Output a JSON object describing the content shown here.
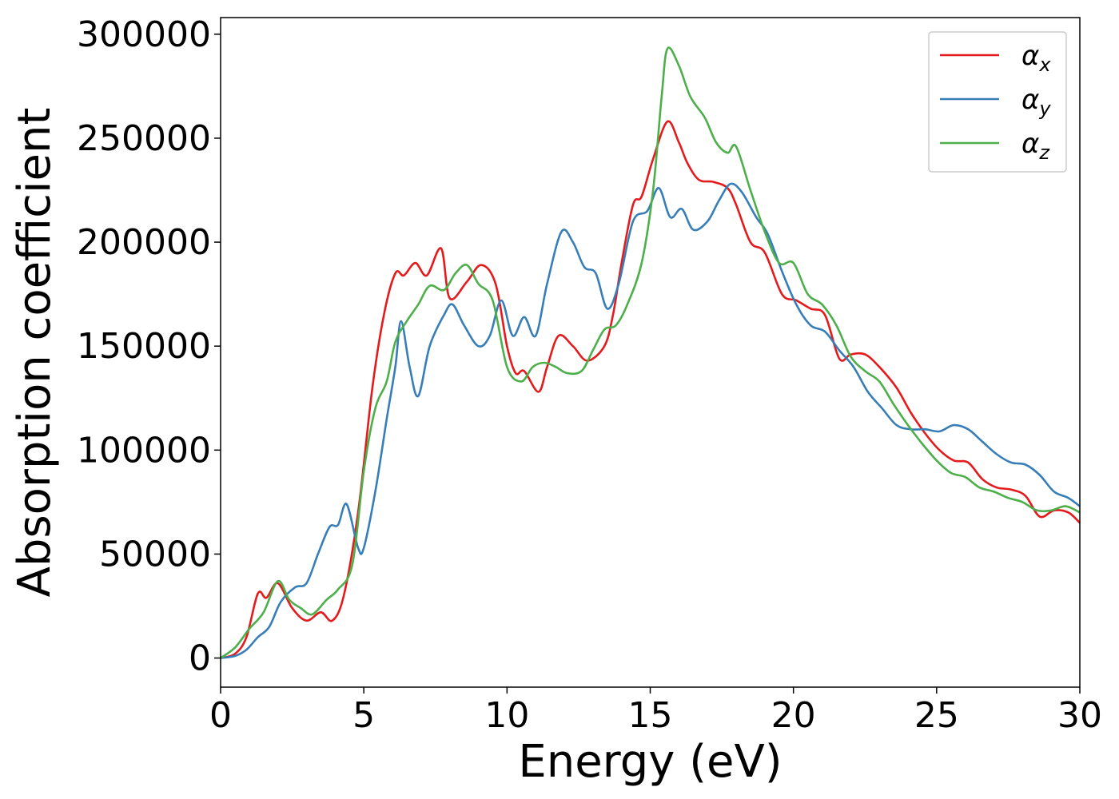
{
  "chart_data": {
    "type": "line",
    "xlabel": "Energy (eV)",
    "ylabel": "Absorption coefficient",
    "xlim": [
      0,
      30
    ],
    "ylim": [
      -14000,
      308000
    ],
    "xticks": [
      0,
      5,
      10,
      15,
      20,
      25,
      30
    ],
    "xtick_labels": [
      "0",
      "5",
      "10",
      "15",
      "20",
      "25",
      "30"
    ],
    "yticks": [
      0,
      50000,
      100000,
      150000,
      200000,
      250000,
      300000
    ],
    "ytick_labels": [
      "0",
      "50000",
      "100000",
      "150000",
      "200000",
      "250000",
      "300000"
    ],
    "grid": false,
    "legend_position": "top-right",
    "series": [
      {
        "name": "α_x",
        "symbol": "α",
        "subscript": "x",
        "color": "#e41a1c",
        "points": [
          [
            0,
            0
          ],
          [
            0.5,
            2000
          ],
          [
            0.9,
            10000
          ],
          [
            1.3,
            31000
          ],
          [
            1.6,
            29000
          ],
          [
            2.0,
            36000
          ],
          [
            2.5,
            24000
          ],
          [
            3.0,
            18000
          ],
          [
            3.5,
            22000
          ],
          [
            3.9,
            18000
          ],
          [
            4.3,
            30000
          ],
          [
            4.8,
            70000
          ],
          [
            5.3,
            130000
          ],
          [
            5.7,
            165000
          ],
          [
            6.1,
            185000
          ],
          [
            6.4,
            184000
          ],
          [
            6.8,
            190000
          ],
          [
            7.2,
            184000
          ],
          [
            7.7,
            197000
          ],
          [
            8.0,
            173000
          ],
          [
            8.6,
            181000
          ],
          [
            9.1,
            189000
          ],
          [
            9.6,
            180000
          ],
          [
            10.0,
            150000
          ],
          [
            10.3,
            137000
          ],
          [
            10.6,
            138000
          ],
          [
            11.1,
            128000
          ],
          [
            11.4,
            140000
          ],
          [
            11.8,
            155000
          ],
          [
            12.3,
            150000
          ],
          [
            12.8,
            143000
          ],
          [
            13.4,
            150000
          ],
          [
            13.7,
            165000
          ],
          [
            14.0,
            190000
          ],
          [
            14.4,
            218000
          ],
          [
            14.7,
            222000
          ],
          [
            15.1,
            240000
          ],
          [
            15.6,
            258000
          ],
          [
            16.0,
            248000
          ],
          [
            16.3,
            238000
          ],
          [
            16.7,
            230000
          ],
          [
            17.2,
            229000
          ],
          [
            17.7,
            226000
          ],
          [
            18.0,
            218000
          ],
          [
            18.5,
            200000
          ],
          [
            19.0,
            195000
          ],
          [
            19.6,
            175000
          ],
          [
            20.1,
            172000
          ],
          [
            20.6,
            168000
          ],
          [
            21.1,
            165000
          ],
          [
            21.6,
            144000
          ],
          [
            22.0,
            146000
          ],
          [
            22.5,
            146000
          ],
          [
            23.0,
            140000
          ],
          [
            23.6,
            130000
          ],
          [
            24.1,
            118000
          ],
          [
            24.6,
            108000
          ],
          [
            25.1,
            100000
          ],
          [
            25.6,
            95000
          ],
          [
            26.1,
            94000
          ],
          [
            26.6,
            86000
          ],
          [
            27.1,
            82000
          ],
          [
            27.6,
            81000
          ],
          [
            28.1,
            78000
          ],
          [
            28.6,
            68000
          ],
          [
            29.1,
            71000
          ],
          [
            29.6,
            70000
          ],
          [
            30.0,
            65000
          ]
        ]
      },
      {
        "name": "α_y",
        "symbol": "α",
        "subscript": "y",
        "color": "#377eb8",
        "points": [
          [
            0,
            0
          ],
          [
            0.5,
            1000
          ],
          [
            0.9,
            4000
          ],
          [
            1.3,
            10000
          ],
          [
            1.7,
            15000
          ],
          [
            2.1,
            27000
          ],
          [
            2.6,
            34000
          ],
          [
            3.0,
            36000
          ],
          [
            3.4,
            50000
          ],
          [
            3.8,
            63000
          ],
          [
            4.1,
            64000
          ],
          [
            4.4,
            74000
          ],
          [
            4.8,
            53000
          ],
          [
            5.0,
            53000
          ],
          [
            5.4,
            80000
          ],
          [
            5.8,
            115000
          ],
          [
            6.1,
            140000
          ],
          [
            6.3,
            162000
          ],
          [
            6.6,
            140000
          ],
          [
            6.9,
            126000
          ],
          [
            7.3,
            150000
          ],
          [
            7.8,
            165000
          ],
          [
            8.1,
            170000
          ],
          [
            8.5,
            160000
          ],
          [
            9.0,
            150000
          ],
          [
            9.4,
            155000
          ],
          [
            9.8,
            172000
          ],
          [
            10.2,
            155000
          ],
          [
            10.6,
            164000
          ],
          [
            11.0,
            155000
          ],
          [
            11.4,
            180000
          ],
          [
            11.9,
            205000
          ],
          [
            12.3,
            200000
          ],
          [
            12.7,
            188000
          ],
          [
            13.1,
            185000
          ],
          [
            13.5,
            168000
          ],
          [
            13.9,
            180000
          ],
          [
            14.4,
            210000
          ],
          [
            14.9,
            215000
          ],
          [
            15.3,
            226000
          ],
          [
            15.7,
            212000
          ],
          [
            16.1,
            216000
          ],
          [
            16.5,
            206000
          ],
          [
            17.0,
            210000
          ],
          [
            17.4,
            220000
          ],
          [
            17.8,
            228000
          ],
          [
            18.2,
            224000
          ],
          [
            18.7,
            212000
          ],
          [
            19.1,
            204000
          ],
          [
            19.6,
            186000
          ],
          [
            20.1,
            170000
          ],
          [
            20.6,
            160000
          ],
          [
            21.1,
            157000
          ],
          [
            21.6,
            148000
          ],
          [
            22.1,
            140000
          ],
          [
            22.6,
            128000
          ],
          [
            23.1,
            120000
          ],
          [
            23.6,
            112000
          ],
          [
            24.1,
            110000
          ],
          [
            24.6,
            110000
          ],
          [
            25.1,
            109000
          ],
          [
            25.6,
            112000
          ],
          [
            26.1,
            110000
          ],
          [
            26.6,
            104000
          ],
          [
            27.1,
            98000
          ],
          [
            27.6,
            94000
          ],
          [
            28.1,
            93000
          ],
          [
            28.6,
            88000
          ],
          [
            29.1,
            80000
          ],
          [
            29.6,
            77000
          ],
          [
            30.0,
            73000
          ]
        ]
      },
      {
        "name": "α_z",
        "symbol": "α",
        "subscript": "z",
        "color": "#4daf4a",
        "points": [
          [
            0,
            0
          ],
          [
            0.5,
            5000
          ],
          [
            1.0,
            14000
          ],
          [
            1.5,
            22000
          ],
          [
            2.0,
            37000
          ],
          [
            2.4,
            28000
          ],
          [
            2.8,
            24000
          ],
          [
            3.2,
            21000
          ],
          [
            3.7,
            28000
          ],
          [
            4.1,
            33000
          ],
          [
            4.6,
            45000
          ],
          [
            5.0,
            90000
          ],
          [
            5.4,
            120000
          ],
          [
            5.8,
            133000
          ],
          [
            6.1,
            152000
          ],
          [
            6.5,
            162000
          ],
          [
            6.9,
            170000
          ],
          [
            7.3,
            179000
          ],
          [
            7.8,
            177000
          ],
          [
            8.2,
            185000
          ],
          [
            8.6,
            189000
          ],
          [
            9.0,
            180000
          ],
          [
            9.5,
            172000
          ],
          [
            10.0,
            140000
          ],
          [
            10.5,
            133000
          ],
          [
            10.9,
            140000
          ],
          [
            11.3,
            142000
          ],
          [
            11.7,
            140000
          ],
          [
            12.1,
            137000
          ],
          [
            12.6,
            138000
          ],
          [
            13.0,
            148000
          ],
          [
            13.4,
            158000
          ],
          [
            13.8,
            160000
          ],
          [
            14.2,
            170000
          ],
          [
            14.7,
            190000
          ],
          [
            15.1,
            225000
          ],
          [
            15.4,
            270000
          ],
          [
            15.6,
            293000
          ],
          [
            16.0,
            285000
          ],
          [
            16.4,
            270000
          ],
          [
            16.9,
            260000
          ],
          [
            17.3,
            248000
          ],
          [
            17.7,
            243000
          ],
          [
            18.0,
            246000
          ],
          [
            18.5,
            225000
          ],
          [
            19.0,
            205000
          ],
          [
            19.5,
            190000
          ],
          [
            20.0,
            190000
          ],
          [
            20.5,
            175000
          ],
          [
            21.0,
            170000
          ],
          [
            21.5,
            160000
          ],
          [
            22.0,
            145000
          ],
          [
            22.5,
            138000
          ],
          [
            23.0,
            133000
          ],
          [
            23.5,
            122000
          ],
          [
            24.0,
            112000
          ],
          [
            24.5,
            103000
          ],
          [
            25.0,
            95000
          ],
          [
            25.5,
            89000
          ],
          [
            26.0,
            87000
          ],
          [
            26.5,
            82000
          ],
          [
            27.0,
            80000
          ],
          [
            27.5,
            77000
          ],
          [
            28.0,
            75000
          ],
          [
            28.5,
            71000
          ],
          [
            29.0,
            71000
          ],
          [
            29.5,
            73000
          ],
          [
            30.0,
            70000
          ]
        ]
      }
    ]
  }
}
